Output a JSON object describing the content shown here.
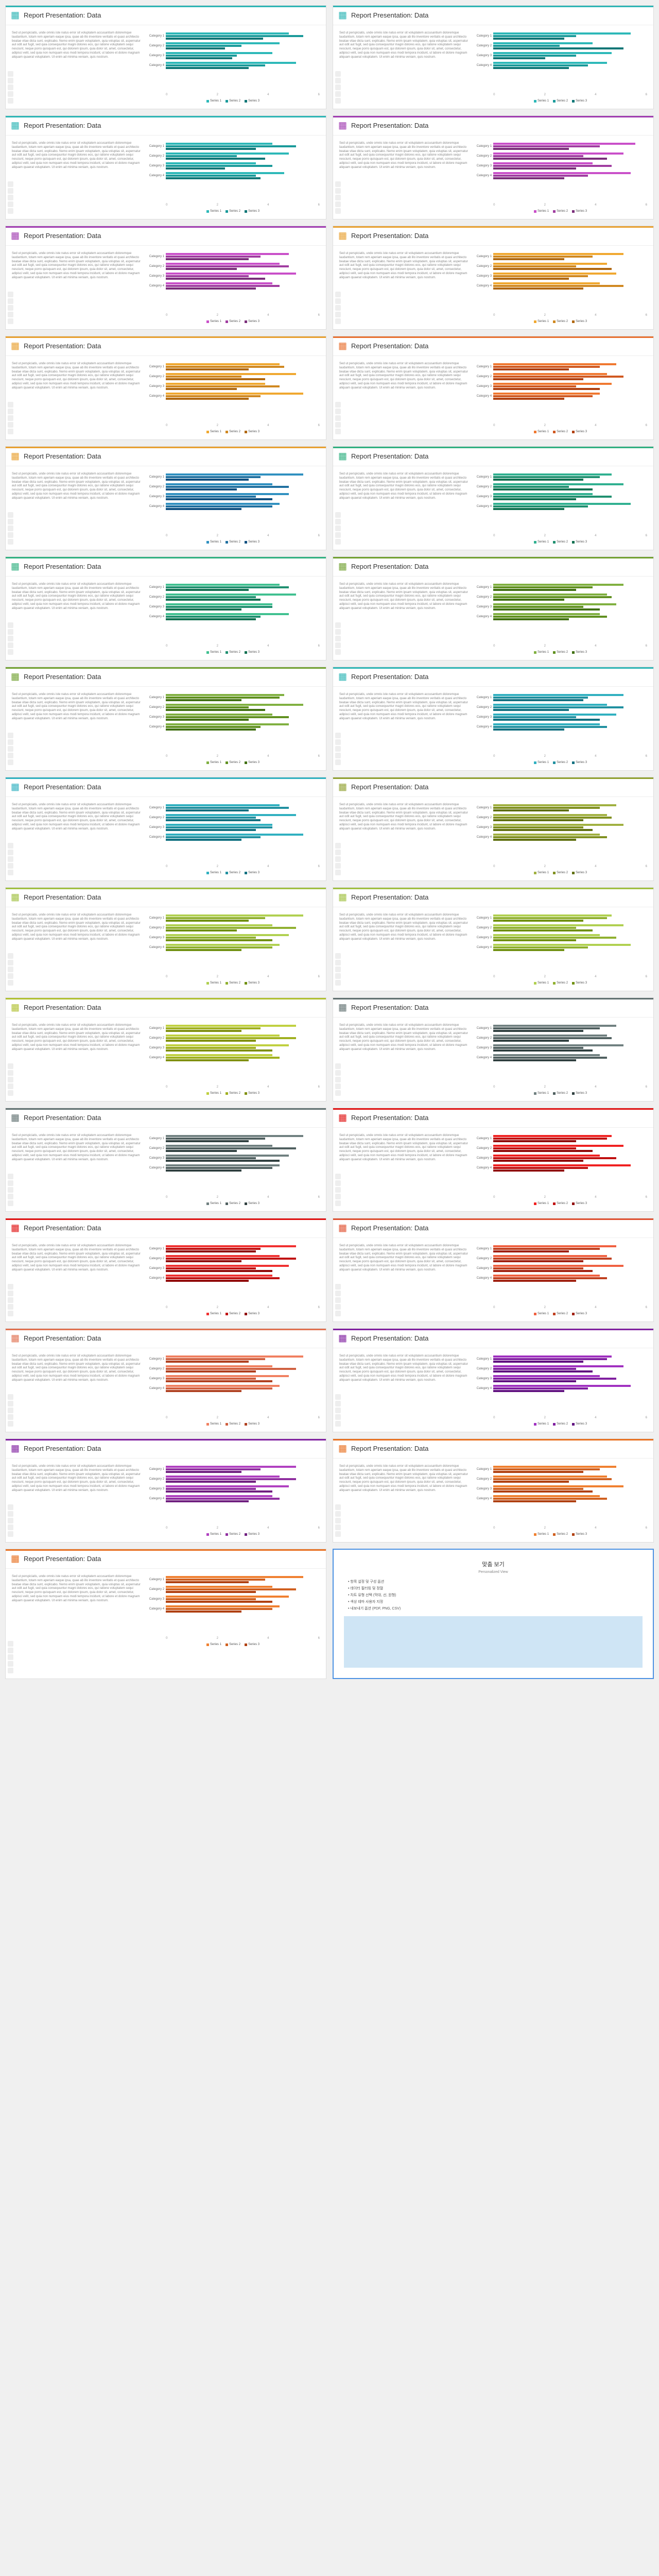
{
  "title": "Report Presentation: Data",
  "lorem": "Sed ut perspiciatis, unde omnis iste natus error sit voluptatem accusantium doloremque laudantium, totam rem aperiam eaque ipsa, quae ab illo inventore veritatis et quasi architecto beatae vitae dicta sunt, explicabo. Nemo enim ipsam voluptatem, quia voluptas sit, aspernatur aut odit aut fugit, sed quia consequuntur magni dolores eos, qui ratione voluptatem sequi nesciunt, neque porro quisquam est, qui dolorem ipsum, quia dolor sit, amet, consectetur, adipisci velit, sed quia non numquam eius modi tempora incidunt, ut labore et dolore magnam aliquam quaerat voluptatem. Ut enim ad minima veniam, quis nostrum.",
  "categories": [
    "Category 1",
    "Category 2",
    "Category 3",
    "Category 4"
  ],
  "legend_labels": [
    "Series 1",
    "Series 2",
    "Series 3"
  ],
  "axis_ticks": [
    "0",
    "2",
    "4",
    "6"
  ],
  "cards": [
    {
      "accent": "#2eb5b5",
      "colors": [
        "#2db8b8",
        "#1a9a9a",
        "#0d7676"
      ],
      "data": [
        [
          5.2,
          5.8,
          4.1
        ],
        [
          4.8,
          3.2,
          2.5
        ],
        [
          4.5,
          3.0,
          2.8
        ],
        [
          5.5,
          4.2,
          3.5
        ]
      ]
    },
    {
      "accent": "#2eb5b5",
      "colors": [
        "#2db8b8",
        "#1a9a9a",
        "#0d7676"
      ],
      "data": [
        [
          5.8,
          3.5,
          3.0
        ],
        [
          4.2,
          2.8,
          5.5
        ],
        [
          5.0,
          3.5,
          2.2
        ],
        [
          4.8,
          4.0,
          3.2
        ]
      ]
    },
    {
      "accent": "#2eb5b5",
      "colors": [
        "#2db8b8",
        "#1a9a9a",
        "#0d7676"
      ],
      "data": [
        [
          4.5,
          5.5,
          3.8
        ],
        [
          5.2,
          3.0,
          4.2
        ],
        [
          3.8,
          4.5,
          2.5
        ],
        [
          5.0,
          3.8,
          4.0
        ]
      ]
    },
    {
      "accent": "#a03cb0",
      "colors": [
        "#c94fc9",
        "#a03ca0",
        "#7a2e7a"
      ],
      "data": [
        [
          6.0,
          4.5,
          3.2
        ],
        [
          5.5,
          3.8,
          4.8
        ],
        [
          4.2,
          5.0,
          3.5
        ],
        [
          5.8,
          4.0,
          3.0
        ]
      ]
    },
    {
      "accent": "#a03cb0",
      "colors": [
        "#c94fc9",
        "#a03ca0",
        "#7a2e7a"
      ],
      "data": [
        [
          5.2,
          4.0,
          3.5
        ],
        [
          4.8,
          5.2,
          3.0
        ],
        [
          5.5,
          3.5,
          4.2
        ],
        [
          4.5,
          4.8,
          3.8
        ]
      ]
    },
    {
      "accent": "#e8a030",
      "colors": [
        "#f0a830",
        "#d08820",
        "#b06810"
      ],
      "data": [
        [
          5.5,
          4.2,
          3.0
        ],
        [
          4.8,
          3.5,
          5.0
        ],
        [
          5.2,
          4.0,
          3.2
        ],
        [
          4.5,
          5.5,
          3.8
        ]
      ]
    },
    {
      "accent": "#e8a030",
      "colors": [
        "#f0a830",
        "#d08820",
        "#b06810"
      ],
      "data": [
        [
          4.8,
          5.0,
          3.5
        ],
        [
          5.5,
          3.2,
          4.2
        ],
        [
          4.2,
          4.8,
          3.0
        ],
        [
          5.8,
          4.0,
          3.5
        ]
      ]
    },
    {
      "accent": "#e87030",
      "colors": [
        "#f07830",
        "#d05820",
        "#b04010"
      ],
      "data": [
        [
          5.2,
          4.5,
          3.2
        ],
        [
          4.8,
          5.5,
          3.8
        ],
        [
          5.0,
          3.5,
          4.5
        ],
        [
          4.5,
          4.2,
          3.0
        ]
      ]
    },
    {
      "accent": "#e8a030",
      "colors": [
        "#3090c0",
        "#2070a0",
        "#105080"
      ],
      "data": [
        [
          5.8,
          4.0,
          3.5
        ],
        [
          4.5,
          5.2,
          3.0
        ],
        [
          5.2,
          3.8,
          4.5
        ],
        [
          4.8,
          4.5,
          3.2
        ]
      ]
    },
    {
      "accent": "#30b080",
      "colors": [
        "#30b090",
        "#209070",
        "#107050"
      ],
      "data": [
        [
          5.0,
          4.5,
          3.8
        ],
        [
          5.5,
          3.2,
          4.2
        ],
        [
          4.2,
          5.0,
          3.5
        ],
        [
          5.8,
          4.0,
          3.0
        ]
      ]
    },
    {
      "accent": "#30b080",
      "colors": [
        "#40c090",
        "#209070",
        "#107050"
      ],
      "data": [
        [
          4.8,
          5.2,
          3.5
        ],
        [
          5.5,
          3.8,
          4.0
        ],
        [
          4.5,
          4.5,
          3.2
        ],
        [
          5.2,
          4.0,
          3.8
        ]
      ]
    },
    {
      "accent": "#70a030",
      "colors": [
        "#80b040",
        "#609020",
        "#407010"
      ],
      "data": [
        [
          5.5,
          4.2,
          3.5
        ],
        [
          4.8,
          5.0,
          3.0
        ],
        [
          5.2,
          3.8,
          4.5
        ],
        [
          4.5,
          4.8,
          3.2
        ]
      ]
    },
    {
      "accent": "#70a030",
      "colors": [
        "#80b040",
        "#609020",
        "#407010"
      ],
      "data": [
        [
          5.0,
          4.8,
          3.2
        ],
        [
          5.8,
          3.5,
          4.2
        ],
        [
          4.5,
          5.2,
          3.5
        ],
        [
          5.2,
          4.0,
          3.8
        ]
      ]
    },
    {
      "accent": "#2eb5b5",
      "colors": [
        "#30b0c0",
        "#2090a0",
        "#107080"
      ],
      "data": [
        [
          5.5,
          4.0,
          3.8
        ],
        [
          4.8,
          5.5,
          3.2
        ],
        [
          5.2,
          3.5,
          4.5
        ],
        [
          4.5,
          4.8,
          3.0
        ]
      ]
    },
    {
      "accent": "#30b0c0",
      "colors": [
        "#30b0c0",
        "#2090a0",
        "#107080"
      ],
      "data": [
        [
          4.8,
          5.2,
          3.5
        ],
        [
          5.5,
          3.8,
          4.0
        ],
        [
          4.5,
          4.5,
          3.8
        ],
        [
          5.8,
          4.0,
          3.2
        ]
      ]
    },
    {
      "accent": "#90a030",
      "colors": [
        "#a0b040",
        "#809020",
        "#607010"
      ],
      "data": [
        [
          5.2,
          4.5,
          3.2
        ],
        [
          4.8,
          5.0,
          3.8
        ],
        [
          5.5,
          3.8,
          4.2
        ],
        [
          4.5,
          4.8,
          3.5
        ]
      ]
    },
    {
      "accent": "#a0c040",
      "colors": [
        "#b0d050",
        "#90b030",
        "#709010"
      ],
      "data": [
        [
          5.8,
          4.2,
          3.5
        ],
        [
          4.5,
          5.5,
          3.0
        ],
        [
          5.2,
          3.8,
          4.5
        ],
        [
          4.8,
          4.5,
          3.2
        ]
      ]
    },
    {
      "accent": "#a0c040",
      "colors": [
        "#b0d050",
        "#90b030",
        "#709010"
      ],
      "data": [
        [
          5.0,
          4.8,
          3.8
        ],
        [
          5.5,
          3.5,
          4.2
        ],
        [
          4.5,
          5.2,
          3.5
        ],
        [
          5.8,
          4.0,
          3.0
        ]
      ]
    },
    {
      "accent": "#b0c030",
      "colors": [
        "#c0d040",
        "#a0b020",
        "#809010"
      ],
      "data": [
        [
          5.5,
          4.0,
          3.2
        ],
        [
          4.8,
          5.5,
          3.8
        ],
        [
          5.2,
          3.8,
          4.5
        ],
        [
          4.5,
          4.8,
          3.5
        ]
      ]
    },
    {
      "accent": "#607070",
      "colors": [
        "#708080",
        "#506060",
        "#304040"
      ],
      "data": [
        [
          5.2,
          4.5,
          3.8
        ],
        [
          4.8,
          5.0,
          3.2
        ],
        [
          5.5,
          3.8,
          4.2
        ],
        [
          4.5,
          4.8,
          3.5
        ]
      ]
    },
    {
      "accent": "#607070",
      "colors": [
        "#708080",
        "#506060",
        "#304040"
      ],
      "data": [
        [
          5.8,
          4.2,
          3.5
        ],
        [
          4.5,
          5.5,
          3.0
        ],
        [
          5.2,
          3.8,
          4.8
        ],
        [
          4.8,
          4.5,
          3.2
        ]
      ]
    },
    {
      "accent": "#e01010",
      "colors": [
        "#f02020",
        "#c01010",
        "#900808"
      ],
      "data": [
        [
          5.0,
          4.8,
          3.5
        ],
        [
          5.5,
          3.5,
          4.2
        ],
        [
          4.5,
          5.2,
          3.8
        ],
        [
          5.8,
          4.0,
          3.0
        ]
      ]
    },
    {
      "accent": "#e01010",
      "colors": [
        "#f03030",
        "#c01010",
        "#900808"
      ],
      "data": [
        [
          5.5,
          4.0,
          3.8
        ],
        [
          4.8,
          5.5,
          3.2
        ],
        [
          5.2,
          3.8,
          4.5
        ],
        [
          4.5,
          4.8,
          3.5
        ]
      ]
    },
    {
      "accent": "#e05030",
      "colors": [
        "#f06040",
        "#c04020",
        "#a02010"
      ],
      "data": [
        [
          5.2,
          4.5,
          3.2
        ],
        [
          4.8,
          5.0,
          3.8
        ],
        [
          5.5,
          3.8,
          4.2
        ],
        [
          4.5,
          4.8,
          3.5
        ]
      ]
    },
    {
      "accent": "#e07050",
      "colors": [
        "#f08060",
        "#d06040",
        "#b04020"
      ],
      "data": [
        [
          5.8,
          4.2,
          3.5
        ],
        [
          4.5,
          5.5,
          3.8
        ],
        [
          5.2,
          3.8,
          4.5
        ],
        [
          4.8,
          4.5,
          3.2
        ]
      ]
    },
    {
      "accent": "#8020a0",
      "colors": [
        "#a030c0",
        "#8020a0",
        "#601080"
      ],
      "data": [
        [
          5.0,
          4.8,
          3.8
        ],
        [
          5.5,
          3.5,
          4.2
        ],
        [
          4.5,
          5.2,
          3.5
        ],
        [
          5.8,
          4.0,
          3.0
        ]
      ]
    },
    {
      "accent": "#8020a0",
      "colors": [
        "#b040c0",
        "#9030a0",
        "#702080"
      ],
      "data": [
        [
          5.5,
          4.0,
          3.2
        ],
        [
          4.8,
          5.5,
          3.8
        ],
        [
          5.2,
          3.8,
          4.5
        ],
        [
          4.5,
          4.8,
          3.5
        ]
      ]
    },
    {
      "accent": "#e87020",
      "colors": [
        "#f08030",
        "#d06020",
        "#b04010"
      ],
      "data": [
        [
          5.2,
          4.5,
          3.8
        ],
        [
          4.8,
          5.0,
          3.2
        ],
        [
          5.5,
          3.8,
          4.2
        ],
        [
          4.5,
          4.8,
          3.5
        ]
      ]
    },
    {
      "accent": "#e87020",
      "colors": [
        "#f08030",
        "#d06020",
        "#b04010"
      ],
      "data": [
        [
          5.8,
          4.2,
          3.5
        ],
        [
          4.5,
          5.5,
          3.8
        ],
        [
          5.2,
          3.8,
          4.5
        ],
        [
          4.8,
          4.5,
          3.2
        ]
      ]
    }
  ],
  "special": {
    "title": "맞춤 보기",
    "subtitle": "Personalized View",
    "lines": [
      "• 항목 설정 및 구성 옵션",
      "• 데이터 필터링 및 정렬",
      "• 차트 유형 선택 (막대, 선, 원형)",
      "• 색상 테마 사용자 지정",
      "• 내보내기 옵션 (PDF, PNG, CSV)"
    ]
  }
}
